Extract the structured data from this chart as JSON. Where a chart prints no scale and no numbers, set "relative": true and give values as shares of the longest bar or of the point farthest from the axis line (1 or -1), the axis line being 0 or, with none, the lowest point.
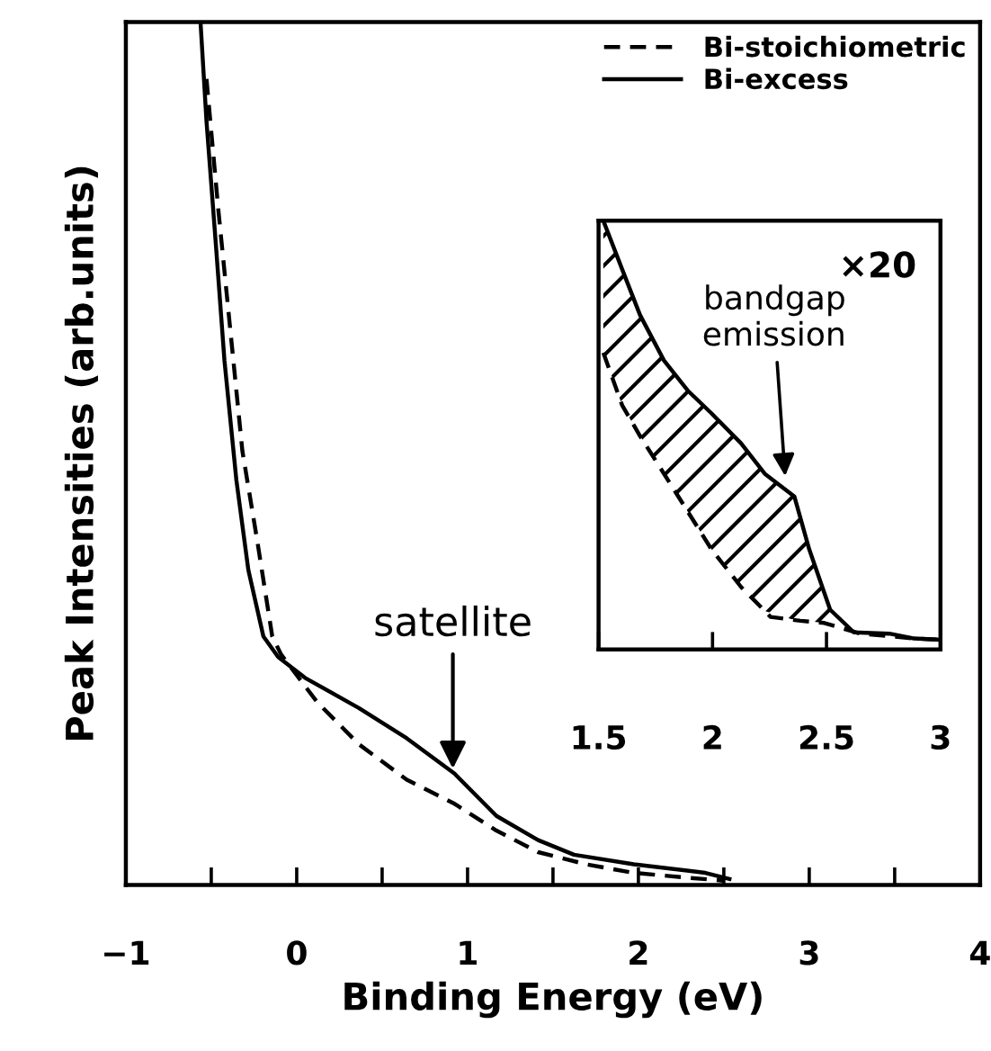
{
  "chart_data": [
    {
      "type": "line",
      "xlabel": "Binding Energy (eV)",
      "ylabel": "Peak Intensities (arb.units)",
      "relative": true,
      "legend": "top right",
      "grid": false,
      "xlim": [
        -1,
        4
      ],
      "xticks": [
        -1,
        {
          "value": -0.5,
          "label": null
        },
        0,
        {
          "value": 0.5,
          "label": null
        },
        1,
        {
          "value": 1.5,
          "label": null
        },
        2,
        {
          "value": 2.5,
          "label": null
        },
        3,
        {
          "value": 3.5,
          "label": null
        },
        4
      ],
      "series": [
        {
          "name": "Bi-stoichiometric",
          "color": "#000000",
          "line_style": "dashed",
          "x": [
            -0.528,
            -0.458,
            -0.388,
            -0.318,
            -0.231,
            -0.143,
            -0.091,
            0.119,
            0.364,
            0.644,
            0.924,
            1.169,
            1.413,
            1.693,
            1.973,
            2.253,
            2.497
          ],
          "values": [
            0.934,
            0.781,
            0.642,
            0.503,
            0.399,
            0.288,
            0.267,
            0.212,
            0.163,
            0.122,
            0.094,
            0.063,
            0.038,
            0.024,
            0.014,
            0.009,
            0.005
          ]
        },
        {
          "name": "Bi-excess",
          "color": "#000000",
          "line_style": "solid",
          "x": [
            -0.563,
            -0.528,
            -0.475,
            -0.423,
            -0.353,
            -0.283,
            -0.195,
            -0.108,
            0.049,
            0.364,
            0.644,
            0.924,
            1.169,
            1.413,
            1.623,
            1.973,
            2.392,
            2.533
          ],
          "values": [
            1.0,
            0.885,
            0.747,
            0.608,
            0.469,
            0.365,
            0.288,
            0.264,
            0.24,
            0.205,
            0.17,
            0.129,
            0.08,
            0.052,
            0.035,
            0.024,
            0.014,
            0.007
          ]
        }
      ],
      "annotations": [
        {
          "text": "satellite",
          "x": 0.914,
          "y": 0.129
        }
      ]
    },
    {
      "type": "line",
      "relative": true,
      "legend": false,
      "grid": false,
      "xlim": [
        1.5,
        3
      ],
      "xticks": [
        1.5,
        2,
        2.5,
        3
      ],
      "series": [
        {
          "color": "#000000",
          "line_style": "dashed",
          "x": [
            1.521,
            1.604,
            1.682,
            1.787,
            1.891,
            1.995,
            2.125,
            2.255,
            2.385,
            2.49,
            2.65,
            2.88,
            2.997
          ],
          "values": [
            0.692,
            0.569,
            0.498,
            0.41,
            0.322,
            0.234,
            0.146,
            0.076,
            0.067,
            0.062,
            0.037,
            0.026,
            0.023
          ]
        },
        {
          "color": "#000000",
          "line_style": "solid",
          "x": [
            1.521,
            1.604,
            1.682,
            1.787,
            1.891,
            1.995,
            2.125,
            2.229,
            2.359,
            2.424,
            2.516,
            2.62,
            2.776,
            2.88,
            2.997
          ],
          "values": [
            1.0,
            0.886,
            0.78,
            0.674,
            0.604,
            0.551,
            0.481,
            0.41,
            0.357,
            0.234,
            0.093,
            0.04,
            0.037,
            0.026,
            0.023
          ],
          "lower": [
            0.692,
            0.569,
            0.498,
            0.41,
            0.322,
            0.234,
            0.146,
            0.09,
            0.069,
            0.066,
            0.06,
            null,
            null,
            null,
            null
          ],
          "upper": [
            1.0,
            0.886,
            0.78,
            0.674,
            0.604,
            0.551,
            0.481,
            0.41,
            0.357,
            0.234,
            0.093,
            null,
            null,
            null,
            null
          ]
        }
      ],
      "annotations": [
        "×20",
        {
          "text": "bandgap\nemission",
          "x": 2.32,
          "y": 0.393
        }
      ]
    }
  ]
}
